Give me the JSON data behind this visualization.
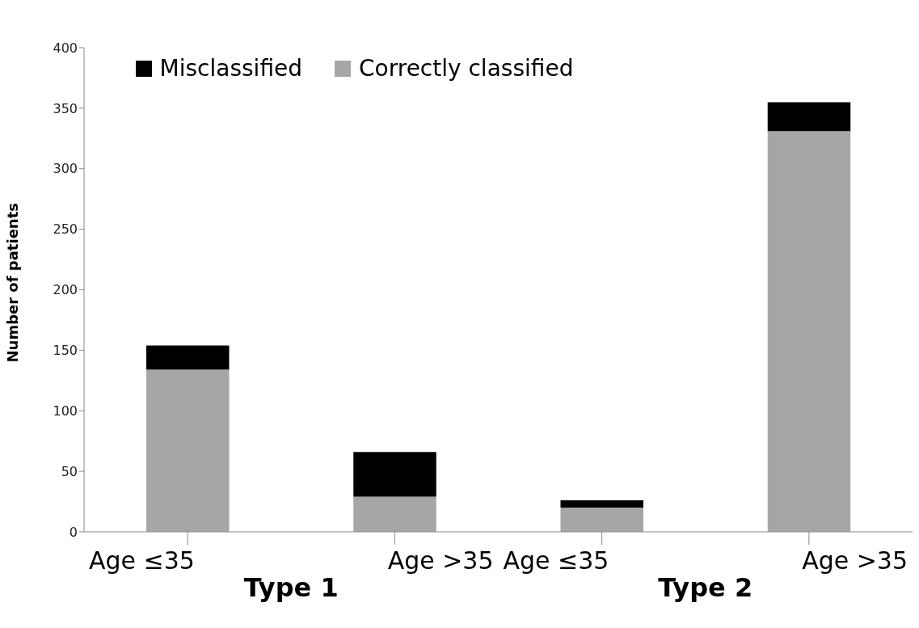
{
  "chart_data": {
    "type": "bar",
    "stacked": true,
    "ylabel": "Number of patients",
    "categories": [
      "Age ≤35",
      "Age >35",
      "Age ≤35",
      "Age >35"
    ],
    "series": [
      {
        "name": "Correctly classified",
        "color": "#a6a6a6",
        "values": [
          134,
          29,
          20,
          331
        ]
      },
      {
        "name": "Misclassified",
        "color": "#000000",
        "values": [
          20,
          37,
          6,
          24
        ]
      }
    ],
    "ylim": [
      0,
      400
    ],
    "yticks": [
      0,
      50,
      100,
      150,
      200,
      250,
      300,
      350,
      400
    ],
    "legend": "top",
    "annotations": [
      "Type 1",
      "Type 2"
    ]
  }
}
